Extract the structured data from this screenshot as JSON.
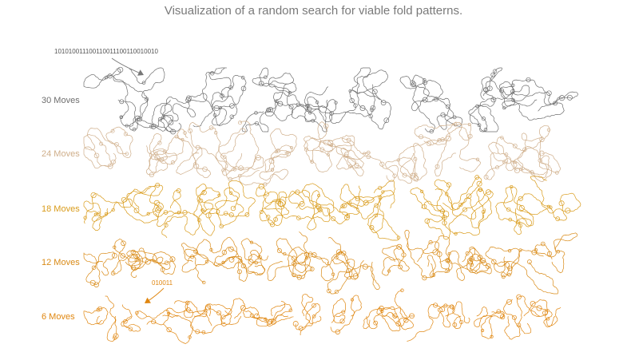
{
  "title": "Visualization of a random search for viable fold patterns.",
  "colors": {
    "title": "#7a7a7a",
    "row_30": "#6e6e6e",
    "row_24": "#cfae8a",
    "row_18": "#d99b1a",
    "row_12": "#d98a16",
    "row_6": "#e0860f"
  },
  "rows": [
    {
      "label": "30 Moves",
      "moves": 30,
      "color_key": "row_30",
      "groups": 9
    },
    {
      "label": "24 Moves",
      "moves": 24,
      "color_key": "row_24",
      "groups": 11
    },
    {
      "label": "18 Moves",
      "moves": 18,
      "color_key": "row_18",
      "groups": 15
    },
    {
      "label": "12 Moves",
      "moves": 12,
      "color_key": "row_12",
      "groups": 21
    },
    {
      "label": "6 Moves",
      "moves": 6,
      "color_key": "row_6",
      "groups": 30
    }
  ],
  "annotations": [
    {
      "text": "101010011100110011100110010010",
      "row": "30 Moves"
    },
    {
      "text": "010011",
      "row": "6 Moves"
    }
  ]
}
